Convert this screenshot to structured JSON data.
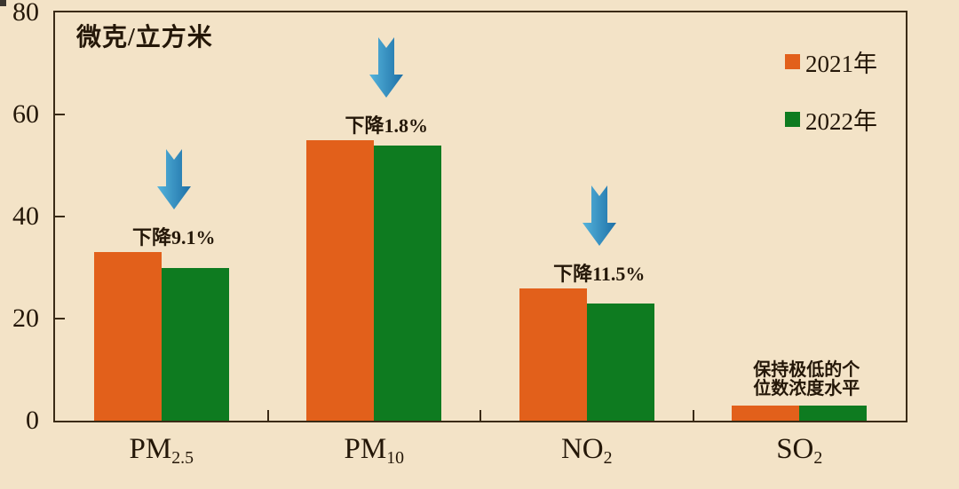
{
  "colors": {
    "background": "#F3E3C7",
    "frame_border": "#3A2B16",
    "text": "#241708",
    "bar_2021": "#E2601B",
    "bar_2022": "#0E7B20",
    "arrow_light": "#55B4DC",
    "arrow_dark": "#1D6FA6"
  },
  "unit_label": "微克/立方米",
  "legend": {
    "items": [
      {
        "label": "2021年",
        "color": "#E2601B"
      },
      {
        "label": "2022年",
        "color": "#0E7B20"
      }
    ]
  },
  "chart_data": {
    "type": "bar",
    "title": "微克/立方米",
    "xlabel": "",
    "ylabel": "微克/立方米",
    "ylim": [
      0,
      80
    ],
    "y_ticks": [
      0,
      20,
      40,
      60,
      80
    ],
    "grid": false,
    "legend_position": "top-right",
    "categories": [
      "PM2.5",
      "PM10",
      "NO2",
      "SO2"
    ],
    "category_labels": [
      {
        "main": "PM",
        "sub": "2.5"
      },
      {
        "main": "PM",
        "sub": "10"
      },
      {
        "main": "NO",
        "sub": "2"
      },
      {
        "main": "SO",
        "sub": "2"
      }
    ],
    "series": [
      {
        "name": "2021年",
        "color": "#E2601B",
        "values": [
          33,
          55,
          26,
          3
        ]
      },
      {
        "name": "2022年",
        "color": "#0E7B20",
        "values": [
          30,
          54,
          23,
          3
        ]
      }
    ],
    "annotations": [
      {
        "category": "PM2.5",
        "lines": [
          "下降9.1%"
        ],
        "arrow": true
      },
      {
        "category": "PM10",
        "lines": [
          "下降1.8%"
        ],
        "arrow": true
      },
      {
        "category": "NO2",
        "lines": [
          "下降11.5%"
        ],
        "arrow": true
      },
      {
        "category": "SO2",
        "lines": [
          "保持极低的个",
          "位数浓度水平"
        ],
        "arrow": false
      }
    ]
  }
}
